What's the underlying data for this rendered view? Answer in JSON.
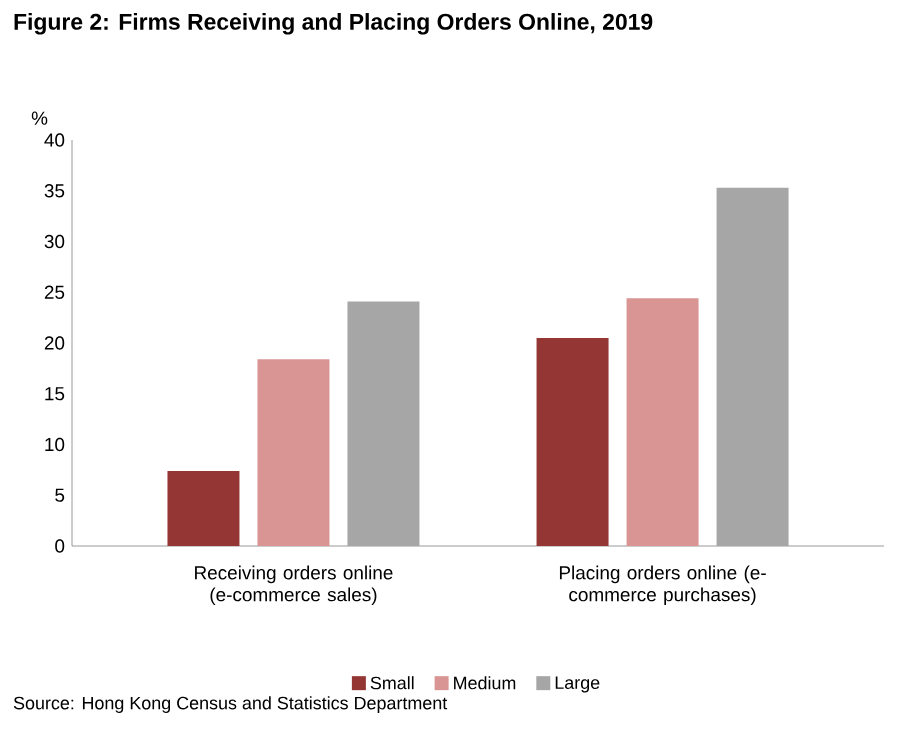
{
  "chart_data": {
    "type": "bar",
    "title": "Figure 2: Firms Receiving and Placing Orders Online, 2019",
    "ylabel": "%",
    "categories": [
      "Receiving orders online (e-commerce sales)",
      "Placing orders online (e-commerce purchases)"
    ],
    "series": [
      {
        "name": "Small",
        "color": "#943634",
        "values": [
          7.4,
          20.5
        ]
      },
      {
        "name": "Medium",
        "color": "#d99594",
        "values": [
          18.4,
          24.4
        ]
      },
      {
        "name": "Large",
        "color": "#a6a6a6",
        "values": [
          24.1,
          35.3
        ]
      }
    ],
    "ylim": [
      0,
      40
    ],
    "yticks": [
      0,
      5,
      10,
      15,
      20,
      25,
      30,
      35,
      40
    ],
    "grid": false,
    "legend": "bottom",
    "annotations": [
      "Source: Hong Kong Census and Statistics Department"
    ]
  }
}
